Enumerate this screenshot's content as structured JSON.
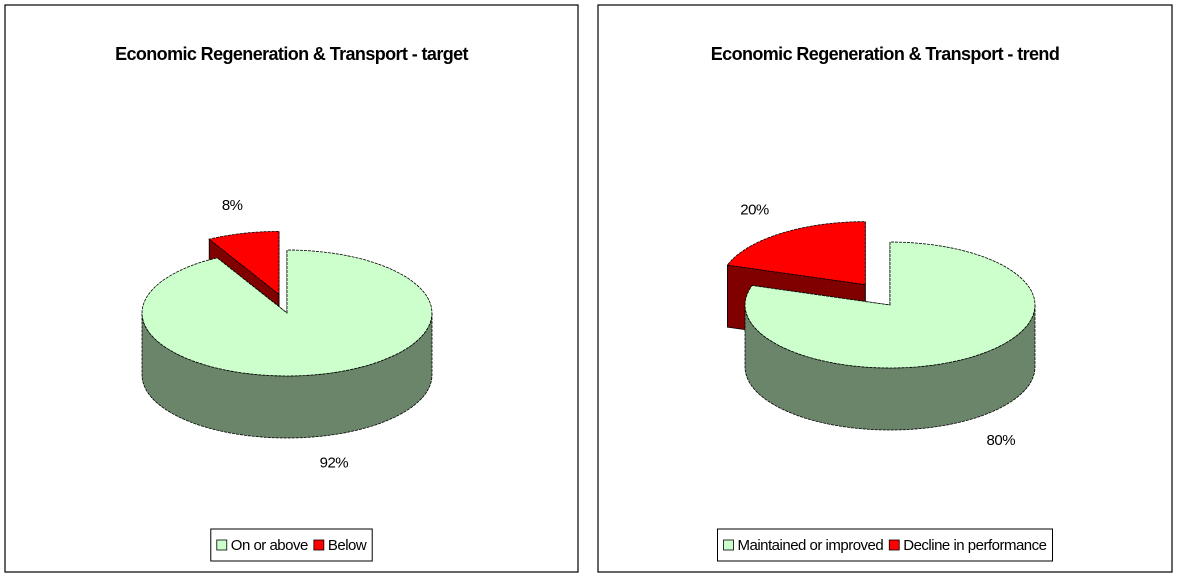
{
  "chart_data": [
    {
      "type": "pie3d",
      "title": "Economic Regeneration & Transport - target",
      "categories": [
        "On or above",
        "Below"
      ],
      "values": [
        92,
        8
      ],
      "value_labels": [
        "92%",
        "8%"
      ],
      "colors": [
        "#ccffcc",
        "#ff0000"
      ],
      "legend": "bottom"
    },
    {
      "type": "pie3d",
      "title": "Economic Regeneration & Transport - trend",
      "categories": [
        "Maintained or improved",
        "Decline in performance"
      ],
      "values": [
        80,
        20
      ],
      "value_labels": [
        "80%",
        "20%"
      ],
      "colors": [
        "#ccffcc",
        "#ff0000"
      ],
      "legend": "bottom"
    }
  ]
}
